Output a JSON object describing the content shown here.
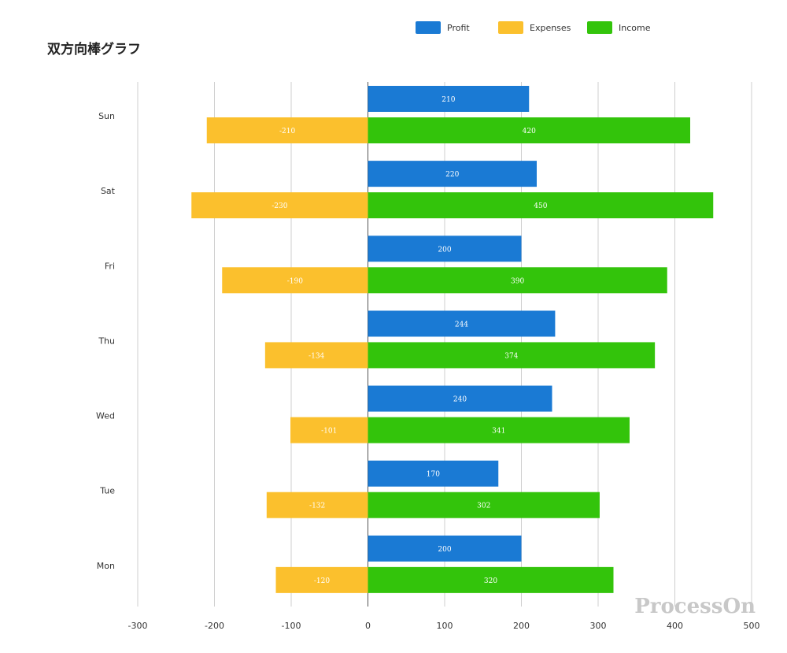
{
  "chart_data": {
    "type": "bar",
    "title": "双方向棒グラフ",
    "orientation": "horizontal",
    "categories": [
      "Sun",
      "Sat",
      "Fri",
      "Thu",
      "Wed",
      "Tue",
      "Mon"
    ],
    "series": [
      {
        "name": "Profit",
        "color": "#1a7ad4",
        "values": [
          210,
          220,
          200,
          244,
          240,
          170,
          200
        ],
        "labels": [
          "210",
          "220",
          "200",
          "244",
          "240",
          "170",
          "200"
        ]
      },
      {
        "name": "Expenses",
        "color": "#fbc02d",
        "values": [
          -210,
          -230,
          -190,
          -134,
          -101,
          -132,
          -120
        ],
        "labels": [
          "-210",
          "-230",
          "-190",
          "-134",
          "-101",
          "-132",
          "-120"
        ]
      },
      {
        "name": "Income",
        "color": "#33c40b",
        "values": [
          420,
          450,
          390,
          374,
          341,
          302,
          320
        ],
        "labels": [
          "420",
          "450",
          "390",
          "374",
          "341",
          "302",
          "320"
        ]
      }
    ],
    "xlim": [
      -300,
      500
    ],
    "x_ticks": [
      "-300",
      "-200",
      "-100",
      "0",
      "100",
      "200",
      "300",
      "400",
      "500"
    ],
    "grid": true,
    "legend_position": "top"
  },
  "watermark": "ProcessOn"
}
